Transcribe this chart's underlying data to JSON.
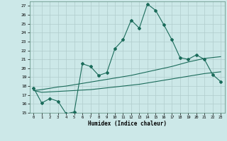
{
  "xlabel": "Humidex (Indice chaleur)",
  "background_color": "#cce8e8",
  "grid_color": "#b0cccc",
  "line_color": "#1a6b5a",
  "x_main": [
    0,
    1,
    2,
    3,
    4,
    5,
    6,
    7,
    8,
    9,
    10,
    11,
    12,
    13,
    14,
    15,
    16,
    17,
    18,
    19,
    20,
    21,
    22,
    23
  ],
  "y_main": [
    17.8,
    16.1,
    16.6,
    16.3,
    14.9,
    15.1,
    20.5,
    20.2,
    19.2,
    19.5,
    22.2,
    23.2,
    25.4,
    24.5,
    27.2,
    26.5,
    24.9,
    23.2,
    21.2,
    21.0,
    21.5,
    21.0,
    19.3,
    18.5
  ],
  "y_trend1": [
    17.5,
    17.6,
    17.75,
    17.9,
    18.0,
    18.15,
    18.3,
    18.45,
    18.6,
    18.75,
    18.9,
    19.05,
    19.2,
    19.4,
    19.6,
    19.8,
    20.0,
    20.2,
    20.45,
    20.7,
    20.9,
    21.1,
    21.2,
    21.3
  ],
  "y_trend2": [
    17.5,
    17.3,
    17.35,
    17.4,
    17.45,
    17.5,
    17.55,
    17.6,
    17.7,
    17.8,
    17.9,
    18.0,
    18.1,
    18.2,
    18.35,
    18.5,
    18.65,
    18.8,
    18.95,
    19.1,
    19.25,
    19.4,
    19.5,
    19.6
  ],
  "xlim": [
    -0.5,
    23.5
  ],
  "ylim": [
    15,
    27.5
  ],
  "yticks": [
    15,
    16,
    17,
    18,
    19,
    20,
    21,
    22,
    23,
    24,
    25,
    26,
    27
  ],
  "xticks": [
    0,
    1,
    2,
    3,
    4,
    5,
    6,
    7,
    8,
    9,
    10,
    11,
    12,
    13,
    14,
    15,
    16,
    17,
    18,
    19,
    20,
    21,
    22,
    23
  ]
}
